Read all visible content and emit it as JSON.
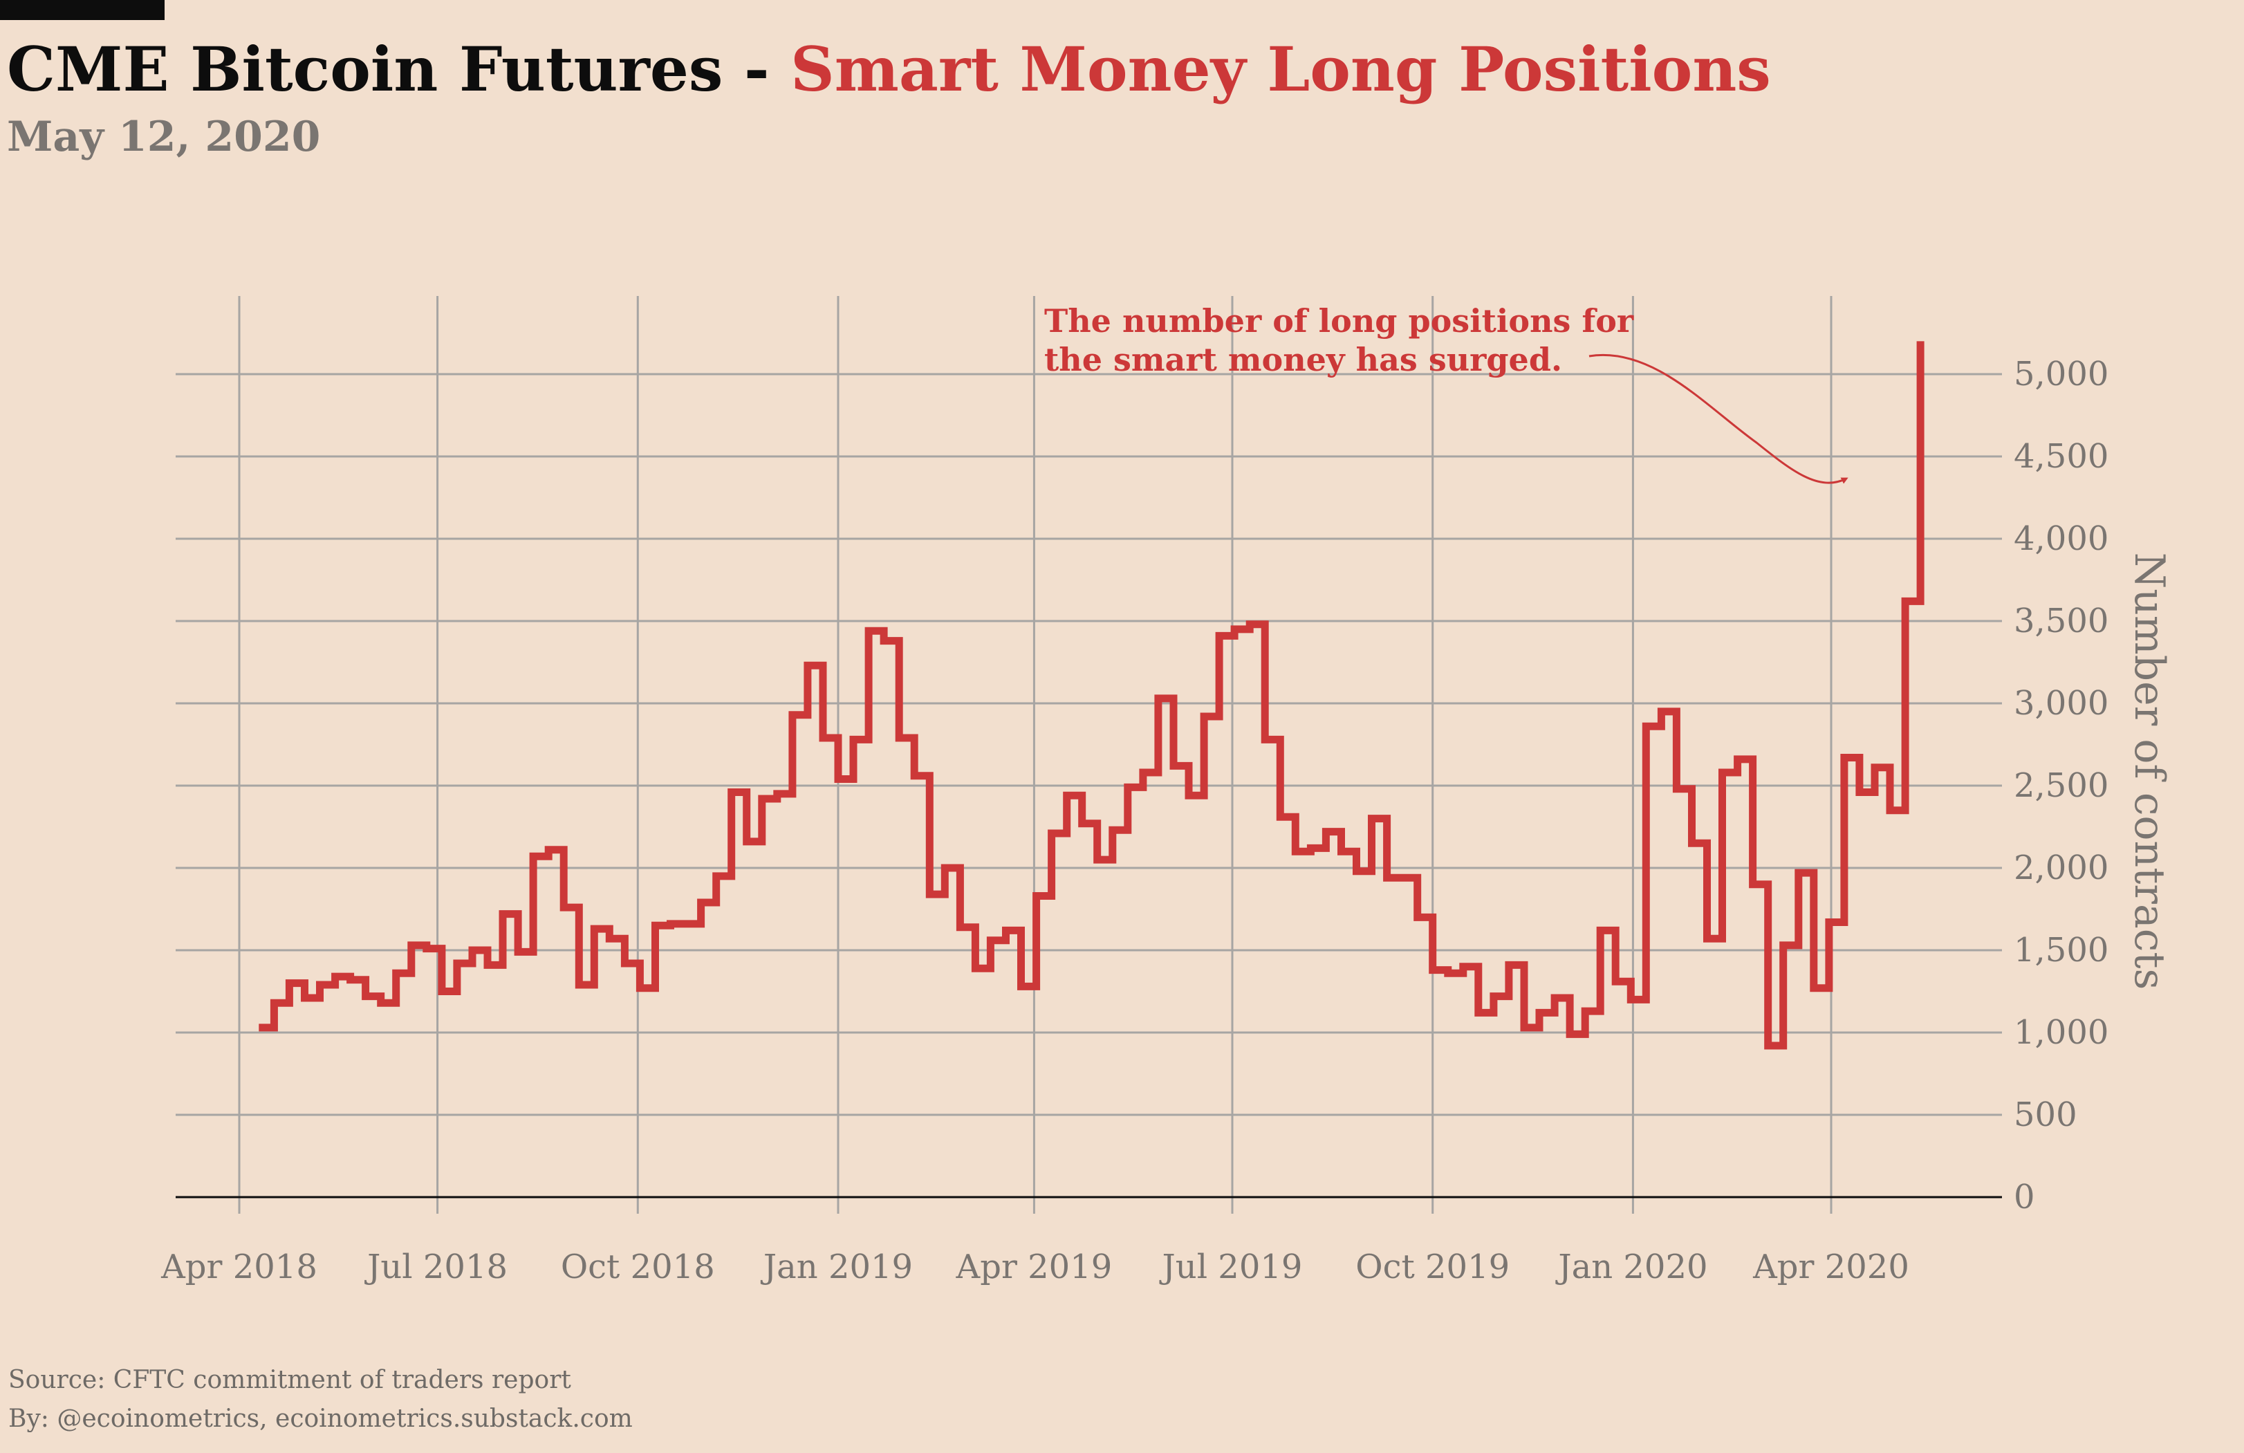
{
  "header": {
    "title_black": "CME Bitcoin Futures - ",
    "title_red": "Smart Money Long Positions",
    "date": "May 12, 2020"
  },
  "footer": {
    "source": "Source: CFTC commitment of traders report",
    "byline": "By: @ecoinometrics, ecoinometrics.substack.com"
  },
  "colors": {
    "background": "#f2dfce",
    "line": "#cc3838",
    "grid": "#a7a5a3",
    "axis_text": "#7a7571",
    "zero_line": "#0d0d0d"
  },
  "chart_data": {
    "type": "line",
    "style": "step",
    "title": "CME Bitcoin Futures - Smart Money Long Positions",
    "subtitle": "May 12, 2020",
    "ylabel": "Number of contracts",
    "xlabel": "",
    "ylim": [
      0,
      5400
    ],
    "xlim": [
      "2018-03-20",
      "2020-06-15"
    ],
    "grid": true,
    "y_axis_side": "right",
    "x_ticks": [
      {
        "date": "2018-04-01",
        "label": "Apr 2018"
      },
      {
        "date": "2018-07-01",
        "label": "Jul 2018"
      },
      {
        "date": "2018-10-01",
        "label": "Oct 2018"
      },
      {
        "date": "2019-01-01",
        "label": "Jan 2019"
      },
      {
        "date": "2019-04-01",
        "label": "Apr 2019"
      },
      {
        "date": "2019-07-01",
        "label": "Jul 2019"
      },
      {
        "date": "2019-10-01",
        "label": "Oct 2019"
      },
      {
        "date": "2020-01-01",
        "label": "Jan 2020"
      },
      {
        "date": "2020-04-01",
        "label": "Apr 2020"
      }
    ],
    "y_ticks": [
      {
        "value": 0,
        "label": "0"
      },
      {
        "value": 500,
        "label": "500"
      },
      {
        "value": 1000,
        "label": "1,000"
      },
      {
        "value": 1500,
        "label": "1,500"
      },
      {
        "value": 2000,
        "label": "2,000"
      },
      {
        "value": 2500,
        "label": "2,500"
      },
      {
        "value": 3000,
        "label": "3,000"
      },
      {
        "value": 3500,
        "label": "3,500"
      },
      {
        "value": 4000,
        "label": "4,000"
      },
      {
        "value": 4500,
        "label": "4,500"
      },
      {
        "value": 5000,
        "label": "5,000"
      }
    ],
    "series": [
      {
        "points": [
          {
            "date": "2018-04-10",
            "value": 1030
          },
          {
            "date": "2018-04-17",
            "value": 1180
          },
          {
            "date": "2018-04-24",
            "value": 1300
          },
          {
            "date": "2018-05-01",
            "value": 1210
          },
          {
            "date": "2018-05-08",
            "value": 1290
          },
          {
            "date": "2018-05-15",
            "value": 1340
          },
          {
            "date": "2018-05-22",
            "value": 1320
          },
          {
            "date": "2018-05-29",
            "value": 1220
          },
          {
            "date": "2018-06-05",
            "value": 1180
          },
          {
            "date": "2018-06-12",
            "value": 1360
          },
          {
            "date": "2018-06-19",
            "value": 1530
          },
          {
            "date": "2018-06-26",
            "value": 1510
          },
          {
            "date": "2018-07-03",
            "value": 1250
          },
          {
            "date": "2018-07-10",
            "value": 1420
          },
          {
            "date": "2018-07-17",
            "value": 1500
          },
          {
            "date": "2018-07-24",
            "value": 1410
          },
          {
            "date": "2018-07-31",
            "value": 1720
          },
          {
            "date": "2018-08-07",
            "value": 1490
          },
          {
            "date": "2018-08-14",
            "value": 2070
          },
          {
            "date": "2018-08-21",
            "value": 2110
          },
          {
            "date": "2018-08-28",
            "value": 1760
          },
          {
            "date": "2018-09-04",
            "value": 1290
          },
          {
            "date": "2018-09-11",
            "value": 1630
          },
          {
            "date": "2018-09-18",
            "value": 1570
          },
          {
            "date": "2018-09-25",
            "value": 1420
          },
          {
            "date": "2018-10-02",
            "value": 1270
          },
          {
            "date": "2018-10-09",
            "value": 1650
          },
          {
            "date": "2018-10-16",
            "value": 1660
          },
          {
            "date": "2018-10-23",
            "value": 1660
          },
          {
            "date": "2018-10-30",
            "value": 1790
          },
          {
            "date": "2018-11-06",
            "value": 1950
          },
          {
            "date": "2018-11-13",
            "value": 2460
          },
          {
            "date": "2018-11-20",
            "value": 2160
          },
          {
            "date": "2018-11-27",
            "value": 2420
          },
          {
            "date": "2018-12-04",
            "value": 2450
          },
          {
            "date": "2018-12-11",
            "value": 2930
          },
          {
            "date": "2018-12-18",
            "value": 3230
          },
          {
            "date": "2018-12-25",
            "value": 2790
          },
          {
            "date": "2019-01-01",
            "value": 2540
          },
          {
            "date": "2019-01-08",
            "value": 2780
          },
          {
            "date": "2019-01-15",
            "value": 3440
          },
          {
            "date": "2019-01-22",
            "value": 3380
          },
          {
            "date": "2019-01-29",
            "value": 2790
          },
          {
            "date": "2019-02-05",
            "value": 2560
          },
          {
            "date": "2019-02-12",
            "value": 1840
          },
          {
            "date": "2019-02-19",
            "value": 2000
          },
          {
            "date": "2019-02-26",
            "value": 1640
          },
          {
            "date": "2019-03-05",
            "value": 1390
          },
          {
            "date": "2019-03-12",
            "value": 1560
          },
          {
            "date": "2019-03-19",
            "value": 1620
          },
          {
            "date": "2019-03-26",
            "value": 1280
          },
          {
            "date": "2019-04-02",
            "value": 1830
          },
          {
            "date": "2019-04-09",
            "value": 2210
          },
          {
            "date": "2019-04-16",
            "value": 2440
          },
          {
            "date": "2019-04-23",
            "value": 2270
          },
          {
            "date": "2019-04-30",
            "value": 2050
          },
          {
            "date": "2019-05-07",
            "value": 2230
          },
          {
            "date": "2019-05-14",
            "value": 2490
          },
          {
            "date": "2019-05-21",
            "value": 2580
          },
          {
            "date": "2019-05-28",
            "value": 3030
          },
          {
            "date": "2019-06-04",
            "value": 2620
          },
          {
            "date": "2019-06-11",
            "value": 2440
          },
          {
            "date": "2019-06-18",
            "value": 2920
          },
          {
            "date": "2019-06-25",
            "value": 3410
          },
          {
            "date": "2019-07-02",
            "value": 3450
          },
          {
            "date": "2019-07-09",
            "value": 3480
          },
          {
            "date": "2019-07-16",
            "value": 2780
          },
          {
            "date": "2019-07-23",
            "value": 2310
          },
          {
            "date": "2019-07-30",
            "value": 2100
          },
          {
            "date": "2019-08-06",
            "value": 2120
          },
          {
            "date": "2019-08-13",
            "value": 2220
          },
          {
            "date": "2019-08-20",
            "value": 2100
          },
          {
            "date": "2019-08-27",
            "value": 1980
          },
          {
            "date": "2019-09-03",
            "value": 2300
          },
          {
            "date": "2019-09-10",
            "value": 1940
          },
          {
            "date": "2019-09-17",
            "value": 1940
          },
          {
            "date": "2019-09-24",
            "value": 1700
          },
          {
            "date": "2019-10-01",
            "value": 1380
          },
          {
            "date": "2019-10-08",
            "value": 1360
          },
          {
            "date": "2019-10-15",
            "value": 1400
          },
          {
            "date": "2019-10-22",
            "value": 1120
          },
          {
            "date": "2019-10-29",
            "value": 1220
          },
          {
            "date": "2019-11-05",
            "value": 1410
          },
          {
            "date": "2019-11-12",
            "value": 1030
          },
          {
            "date": "2019-11-19",
            "value": 1120
          },
          {
            "date": "2019-11-26",
            "value": 1210
          },
          {
            "date": "2019-12-03",
            "value": 990
          },
          {
            "date": "2019-12-10",
            "value": 1130
          },
          {
            "date": "2019-12-17",
            "value": 1620
          },
          {
            "date": "2019-12-24",
            "value": 1310
          },
          {
            "date": "2019-12-31",
            "value": 1200
          },
          {
            "date": "2020-01-07",
            "value": 2860
          },
          {
            "date": "2020-01-14",
            "value": 2950
          },
          {
            "date": "2020-01-21",
            "value": 2480
          },
          {
            "date": "2020-01-28",
            "value": 2150
          },
          {
            "date": "2020-02-04",
            "value": 1570
          },
          {
            "date": "2020-02-11",
            "value": 2580
          },
          {
            "date": "2020-02-18",
            "value": 2660
          },
          {
            "date": "2020-02-25",
            "value": 1900
          },
          {
            "date": "2020-03-03",
            "value": 920
          },
          {
            "date": "2020-03-10",
            "value": 1530
          },
          {
            "date": "2020-03-17",
            "value": 1970
          },
          {
            "date": "2020-03-24",
            "value": 1270
          },
          {
            "date": "2020-03-31",
            "value": 1670
          },
          {
            "date": "2020-04-07",
            "value": 2670
          },
          {
            "date": "2020-04-14",
            "value": 2460
          },
          {
            "date": "2020-04-21",
            "value": 2610
          },
          {
            "date": "2020-04-28",
            "value": 2350
          },
          {
            "date": "2020-05-05",
            "value": 3620
          },
          {
            "date": "2020-05-12",
            "value": 5200
          }
        ]
      }
    ],
    "annotation": {
      "lines": [
        "The number of long positions for",
        "the smart money has surged."
      ]
    }
  }
}
